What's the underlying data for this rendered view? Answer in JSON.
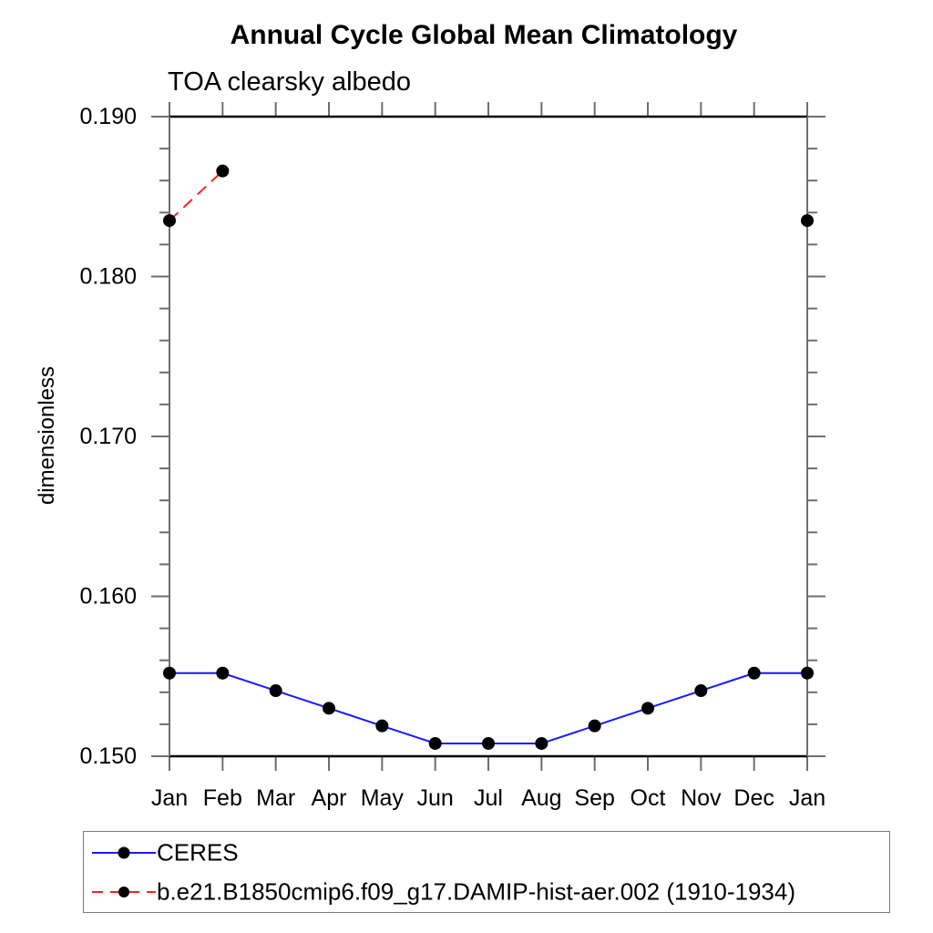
{
  "header": {
    "title": "Annual Cycle Global Mean Climatology",
    "subtitle": "TOA clearsky albedo"
  },
  "chart_data": {
    "type": "line",
    "title": "Annual Cycle Global Mean Climatology",
    "subtitle": "TOA clearsky albedo",
    "xlabel": "",
    "ylabel": "dimensionless",
    "categories": [
      "Jan",
      "Feb",
      "Mar",
      "Apr",
      "May",
      "Jun",
      "Jul",
      "Aug",
      "Sep",
      "Oct",
      "Nov",
      "Dec",
      "Jan"
    ],
    "ylim": [
      0.15,
      0.19
    ],
    "y_major_step": 0.01,
    "y_minor_step": 0.002,
    "y_tick_decimals": 3,
    "y_tick_labels": [
      "0.150",
      "0.160",
      "0.170",
      "0.180",
      "0.190"
    ],
    "grid": false,
    "legend_position": "bottom-left",
    "colors": {
      "frame_horizontal": "#000000",
      "frame_vertical": "#6e6e6e",
      "ticks": "#6e6e6e",
      "marker": "#000000"
    },
    "series": [
      {
        "name": "CERES",
        "line_color": "#1919ff",
        "line_style": "solid",
        "marker": "filled-circle",
        "values": [
          0.1552,
          0.1552,
          0.1541,
          0.153,
          0.1519,
          0.1508,
          0.1508,
          0.1508,
          0.1519,
          0.153,
          0.1541,
          0.1552,
          0.1552
        ]
      },
      {
        "name": "b.e21.B1850cmip6.f09_g17.DAMIP-hist-aer.002 (1910-1934)",
        "line_color": "#ff2020",
        "line_style": "dashed",
        "marker": "filled-circle",
        "values": [
          0.1835,
          0.1866,
          null,
          null,
          null,
          null,
          null,
          null,
          null,
          null,
          null,
          null,
          0.1835
        ]
      }
    ]
  }
}
